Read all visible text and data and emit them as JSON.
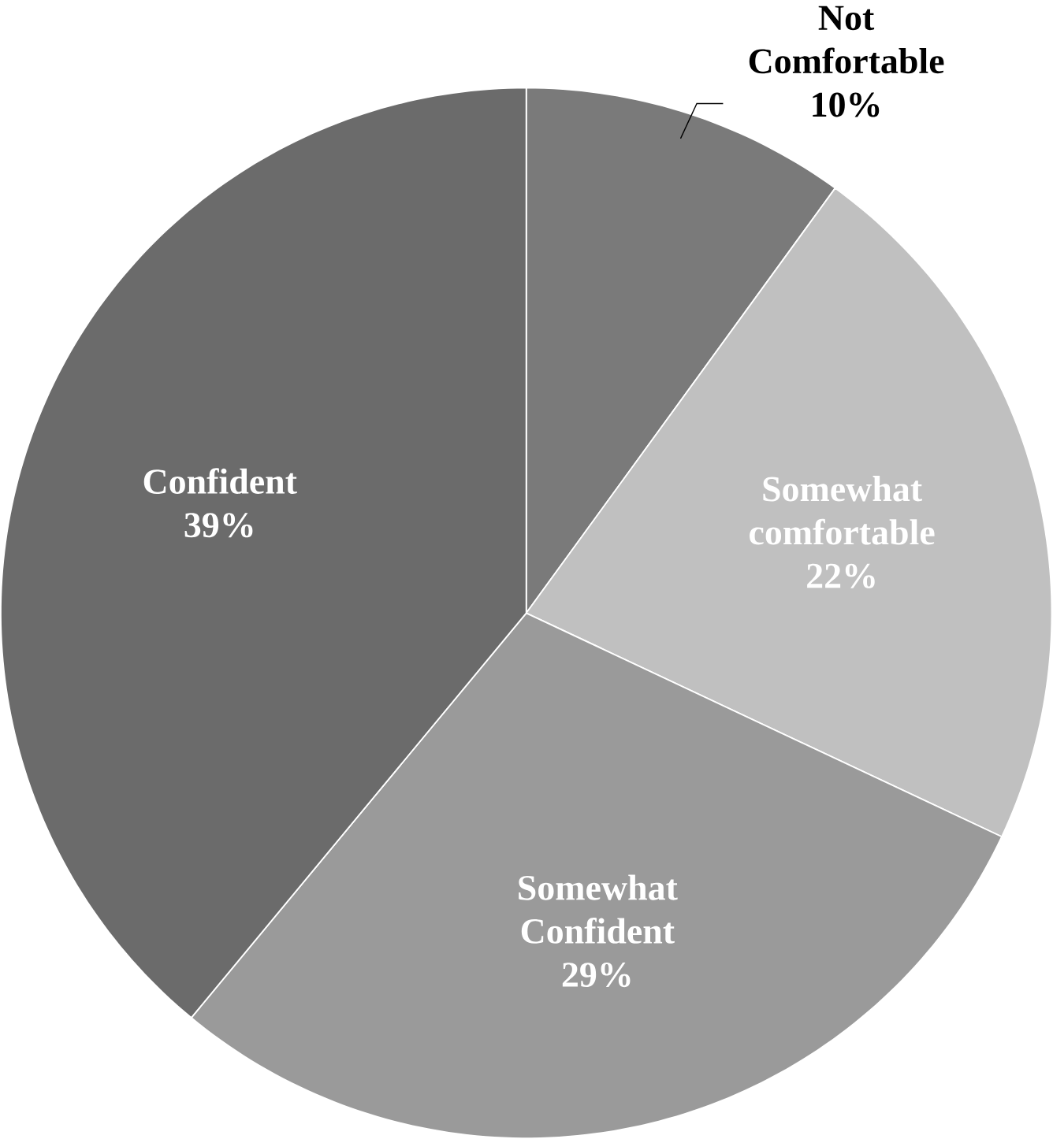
{
  "chart_data": {
    "type": "pie",
    "categories": [
      "Not Comfortable",
      "Somewhat comfortable",
      "Somewhat Confident",
      "Confident"
    ],
    "values": [
      10,
      22,
      29,
      39
    ],
    "value_labels": [
      "10%",
      "22%",
      "29%",
      "39%"
    ],
    "colors": [
      "#7a7a7a",
      "#c0c0c0",
      "#9a9a9a",
      "#6b6b6b"
    ]
  }
}
